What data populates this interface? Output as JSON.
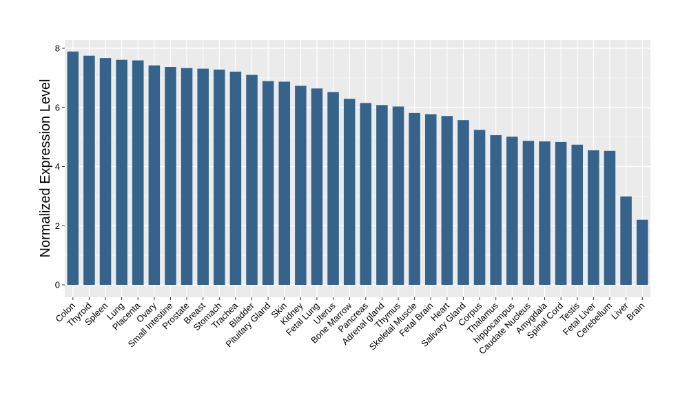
{
  "chart_data": {
    "type": "bar",
    "title": "",
    "xlabel": "",
    "ylabel": "Normalized Expression Level",
    "ylim": [
      0,
      8
    ],
    "yticks": [
      0,
      2,
      4,
      6,
      8
    ],
    "grid": true,
    "bar_color": "#36638b",
    "panel_color": "#ebebeb",
    "categories": [
      "Colon",
      "Thyroid",
      "Spleen",
      "Lung",
      "Placenta",
      "Ovary",
      "Small Intestine",
      "Prostate",
      "Breast",
      "Stomach",
      "Trachea",
      "Bladder",
      "Pituitary Gland",
      "Skin",
      "Kidney",
      "Fetal Lung",
      "Uterus",
      "Bone Marrow",
      "Pancreas",
      "Adrenal gland",
      "Thymus",
      "Skeletal Muscle",
      "Fetal Brain",
      "Heart",
      "Salivary Gland",
      "Corpus",
      "Thalamus",
      "hippocampus",
      "Caudate Nucleus",
      "Amygdala",
      "Spinal Cord",
      "Testis",
      "Fetal Liver",
      "Cerebellum",
      "Liver",
      "Brain"
    ],
    "values": [
      7.89,
      7.75,
      7.67,
      7.61,
      7.59,
      7.42,
      7.37,
      7.33,
      7.31,
      7.28,
      7.21,
      7.1,
      6.89,
      6.87,
      6.73,
      6.64,
      6.52,
      6.29,
      6.15,
      6.08,
      6.03,
      5.81,
      5.77,
      5.71,
      5.57,
      5.24,
      5.06,
      5.01,
      4.87,
      4.85,
      4.83,
      4.74,
      4.55,
      4.53,
      2.99,
      2.2
    ]
  }
}
